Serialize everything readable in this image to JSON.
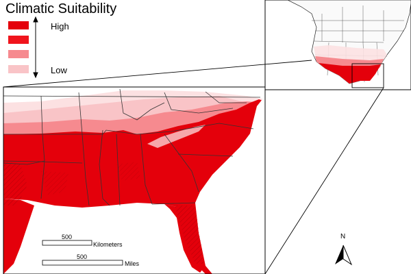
{
  "legend": {
    "title": "Climatic Suitability",
    "high_label": "High",
    "low_label": "Low",
    "classes": [
      {
        "color": "#e4000b"
      },
      {
        "color": "#f0141c"
      },
      {
        "color": "#f68a8f"
      },
      {
        "color": "#f9c4c7"
      }
    ]
  },
  "scale": {
    "km_value": "500",
    "km_unit": "Kilometers",
    "mi_value": "500",
    "mi_unit": "Miles"
  },
  "north": {
    "label": "N"
  },
  "colors": {
    "high": "#e4000b",
    "mid": "#f68a8f",
    "low": "#f9c4c7",
    "none": "#ffffff",
    "border": "#333333"
  }
}
